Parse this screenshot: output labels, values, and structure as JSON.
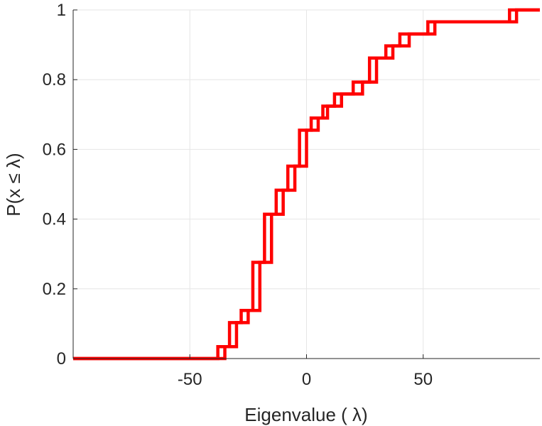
{
  "chart_data": {
    "type": "line",
    "subtype": "stairs",
    "title": "",
    "xlabel": "Eigenvalue (   λ)",
    "ylabel": "P(x ≤ λ)",
    "xlim": [
      -100,
      100
    ],
    "ylim": [
      0,
      1
    ],
    "x_ticks": [
      -50,
      0,
      50
    ],
    "x_tick_labels": [
      "-50",
      "0",
      "50"
    ],
    "y_ticks": [
      0,
      0.2,
      0.4,
      0.6,
      0.8,
      1
    ],
    "y_tick_labels": [
      "0",
      "0.2",
      "0.4",
      "0.6",
      "0.8",
      "1"
    ],
    "grid": true,
    "legend": null,
    "series": [
      {
        "color": "#ff0000",
        "x": [
          -100,
          -38,
          -33,
          -28,
          -23,
          -18,
          -13,
          -8,
          -3,
          2,
          7,
          12,
          20,
          27,
          34,
          40,
          52,
          87,
          100
        ],
        "y": [
          0,
          0.034,
          0.103,
          0.138,
          0.276,
          0.414,
          0.483,
          0.552,
          0.655,
          0.69,
          0.724,
          0.759,
          0.793,
          0.862,
          0.897,
          0.931,
          0.966,
          1.0,
          1.0
        ]
      },
      {
        "color": "#ff0000",
        "x": [
          -100,
          -35,
          -30,
          -25,
          -20,
          -15,
          -10,
          -5,
          0,
          5,
          9,
          15,
          24,
          30,
          37,
          44,
          55,
          90,
          100
        ],
        "y": [
          0,
          0.034,
          0.103,
          0.138,
          0.276,
          0.414,
          0.483,
          0.552,
          0.655,
          0.69,
          0.724,
          0.759,
          0.793,
          0.862,
          0.897,
          0.931,
          0.966,
          1.0,
          1.0
        ]
      }
    ]
  }
}
